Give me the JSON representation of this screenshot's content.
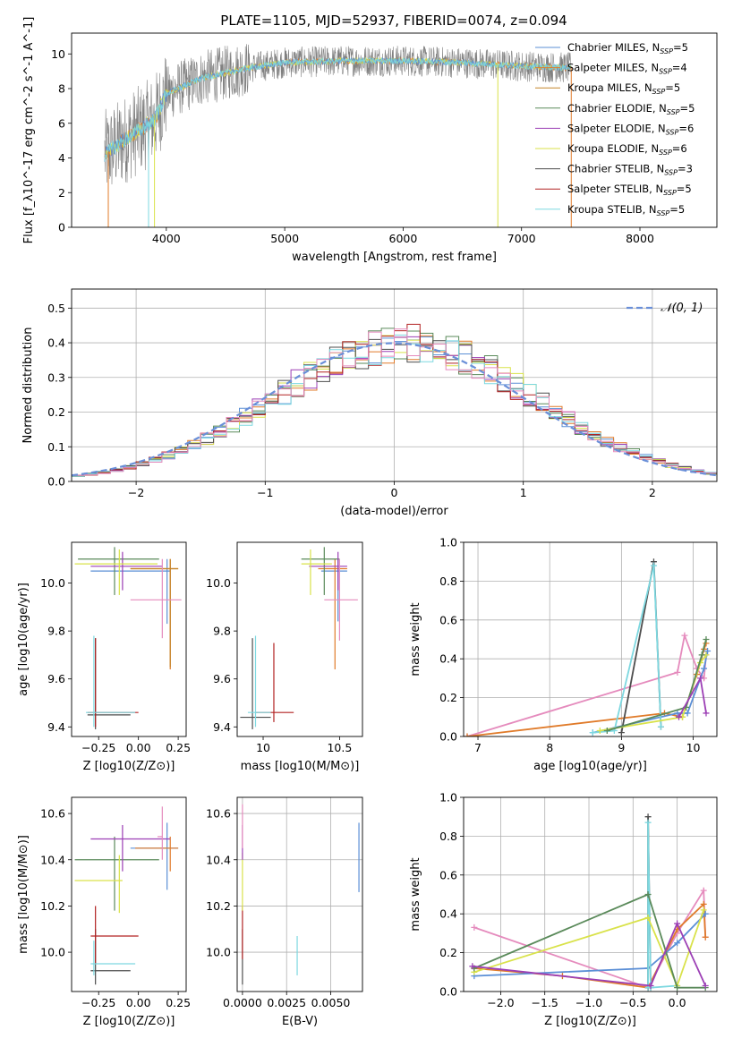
{
  "page_title": "PLATE=1105, MJD=52937, FIBERID=0074, z=0.094",
  "colors": {
    "miles_chabrier": "#5b8fd6",
    "miles_salpeter": "#e07b2a",
    "miles_kroupa": "#c4852a",
    "elodie_chabrier": "#5a8a5a",
    "elodie_salpeter": "#9c3fb5",
    "elodie_kroupa": "#d9e24a",
    "stelib_chabrier": "#4d4d4d",
    "stelib_salpeter": "#b22222",
    "stelib_kroupa": "#7dd8e0",
    "pink": "#e58bbd",
    "data": "#808080",
    "normal_curve": "#6a8fd8",
    "grid": "#b0b0b0"
  },
  "chart_data": [
    {
      "id": "spectrum",
      "type": "line",
      "title": "PLATE=1105, MJD=52937, FIBERID=0074, z=0.094",
      "xlabel": "wavelength [Angstrom, rest frame]",
      "ylabel": "Flux [f_λ10^-17 erg cm^-2 s^-1 A^-1]",
      "xlim": [
        3200,
        8650
      ],
      "ylim": [
        0,
        11.2
      ],
      "xticks": [
        "4000",
        "5000",
        "6000",
        "7000",
        "8000"
      ],
      "yticks": [
        "0",
        "2",
        "4",
        "6",
        "8",
        "10"
      ],
      "legend": [
        {
          "label": "Chabrier MILES, N",
          "sub": "SSP",
          "suffix": "=5"
        },
        {
          "label": "Salpeter MILES, N",
          "sub": "SSP",
          "suffix": "=4"
        },
        {
          "label": "Kroupa MILES, N",
          "sub": "SSP",
          "suffix": "=5"
        },
        {
          "label": "Chabrier ELODIE, N",
          "sub": "SSP",
          "suffix": "=5"
        },
        {
          "label": "Salpeter ELODIE, N",
          "sub": "SSP",
          "suffix": "=6"
        },
        {
          "label": "Kroupa ELODIE, N",
          "sub": "SSP",
          "suffix": "=6"
        },
        {
          "label": "Chabrier STELIB, N",
          "sub": "SSP",
          "suffix": "=3"
        },
        {
          "label": "Salpeter STELIB, N",
          "sub": "SSP",
          "suffix": "=5"
        },
        {
          "label": "Kroupa STELIB, N",
          "sub": "SSP",
          "suffix": "=5"
        }
      ],
      "legend_position": "upper-right",
      "continuum": {
        "x": [
          3480,
          3700,
          3900,
          4000,
          4300,
          4700,
          5000,
          5500,
          6000,
          6500,
          7000,
          7400
        ],
        "y": [
          4.2,
          5.3,
          6.2,
          7.7,
          8.6,
          9.2,
          9.5,
          9.6,
          9.6,
          9.5,
          9.3,
          9.2
        ]
      }
    },
    {
      "id": "residuals",
      "type": "histogram",
      "xlabel": "(data-model)/error",
      "ylabel": "Normed distribution",
      "xlim": [
        -2.5,
        2.5
      ],
      "ylim": [
        0,
        0.555
      ],
      "xticks": [
        "−2",
        "−1",
        "0",
        "1",
        "2"
      ],
      "yticks": [
        "0.0",
        "0.1",
        "0.2",
        "0.3",
        "0.4",
        "0.5"
      ],
      "legend": "𝒩(0, 1)",
      "grid": true,
      "bin_width": 0.1
    },
    {
      "id": "age_vs_Z",
      "type": "errorbar",
      "xlabel": "Z [log10(Z/Z⊙)]",
      "ylabel": "age  [log10(age/yr)]",
      "xlim": [
        -0.42,
        0.3
      ],
      "ylim": [
        9.36,
        10.17
      ],
      "xticks": [
        "−0.25",
        "0.00",
        "0.25"
      ],
      "yticks": [
        "9.4",
        "9.6",
        "9.8",
        "10.0"
      ],
      "points": [
        {
          "c": "miles_chabrier",
          "x": 0.18,
          "y": 10.05,
          "x0": -0.3,
          "x1": 0.2,
          "y0": 9.83,
          "y1": 10.1
        },
        {
          "c": "miles_salpeter",
          "x": 0.2,
          "y": 10.06,
          "x0": -0.05,
          "x1": 0.25,
          "y0": 9.64,
          "y1": 10.1
        },
        {
          "c": "miles_kroupa",
          "x": 0.2,
          "y": 10.06,
          "x0": -0.05,
          "x1": 0.25,
          "y0": 9.65,
          "y1": 10.1
        },
        {
          "c": "elodie_chabrier",
          "x": -0.15,
          "y": 10.1,
          "x0": -0.38,
          "x1": 0.13,
          "y0": 9.95,
          "y1": 10.15
        },
        {
          "c": "elodie_salpeter",
          "x": -0.1,
          "y": 10.07,
          "x0": -0.3,
          "x1": 0.15,
          "y0": 9.97,
          "y1": 10.13
        },
        {
          "c": "elodie_kroupa",
          "x": -0.12,
          "y": 10.08,
          "x0": -0.4,
          "x1": 0.12,
          "y0": 9.95,
          "y1": 10.14
        },
        {
          "c": "stelib_chabrier",
          "x": -0.27,
          "y": 9.45,
          "x0": -0.32,
          "x1": -0.05,
          "y0": 9.39,
          "y1": 9.77
        },
        {
          "c": "stelib_salpeter",
          "x": -0.27,
          "y": 9.46,
          "x0": -0.32,
          "x1": 0.0,
          "y0": 9.4,
          "y1": 9.77
        },
        {
          "c": "stelib_kroupa",
          "x": -0.28,
          "y": 9.46,
          "x0": -0.33,
          "x1": -0.02,
          "y0": 9.4,
          "y1": 9.78
        },
        {
          "c": "pink",
          "x": 0.15,
          "y": 9.93,
          "x0": -0.05,
          "x1": 0.27,
          "y0": 9.77,
          "y1": 10.1
        }
      ]
    },
    {
      "id": "age_vs_mass",
      "type": "errorbar",
      "xlabel": "mass [log10(M/M⊙)]",
      "ylabel": "",
      "xlim": [
        9.83,
        10.65
      ],
      "ylim": [
        9.36,
        10.17
      ],
      "xticks": [
        "10",
        "10.5"
      ],
      "yticks": [
        "9.4",
        "9.6",
        "9.8",
        "10.0"
      ],
      "points": [
        {
          "c": "miles_chabrier",
          "x": 10.49,
          "y": 10.05,
          "x0": 10.38,
          "x1": 10.55,
          "y0": 9.84,
          "y1": 10.1
        },
        {
          "c": "miles_salpeter",
          "x": 10.47,
          "y": 10.06,
          "x0": 10.36,
          "x1": 10.55,
          "y0": 9.64,
          "y1": 10.1
        },
        {
          "c": "elodie_chabrier",
          "x": 10.4,
          "y": 10.1,
          "x0": 10.25,
          "x1": 10.5,
          "y0": 9.95,
          "y1": 10.15
        },
        {
          "c": "elodie_salpeter",
          "x": 10.49,
          "y": 10.07,
          "x0": 10.3,
          "x1": 10.55,
          "y0": 9.97,
          "y1": 10.13
        },
        {
          "c": "elodie_kroupa",
          "x": 10.31,
          "y": 10.08,
          "x0": 10.25,
          "x1": 10.45,
          "y0": 9.95,
          "y1": 10.14
        },
        {
          "c": "stelib_chabrier",
          "x": 9.93,
          "y": 9.44,
          "x0": 9.85,
          "x1": 10.05,
          "y0": 9.39,
          "y1": 9.77
        },
        {
          "c": "stelib_salpeter",
          "x": 10.07,
          "y": 9.46,
          "x0": 9.95,
          "x1": 10.2,
          "y0": 9.42,
          "y1": 9.75
        },
        {
          "c": "stelib_kroupa",
          "x": 9.95,
          "y": 9.46,
          "x0": 9.9,
          "x1": 10.05,
          "y0": 9.4,
          "y1": 9.78
        },
        {
          "c": "pink",
          "x": 10.5,
          "y": 9.93,
          "x0": 10.4,
          "x1": 10.62,
          "y0": 9.76,
          "y1": 10.1
        }
      ]
    },
    {
      "id": "weight_vs_age",
      "type": "line",
      "xlabel": "age  [log10(age/yr)]",
      "ylabel": "mass weight",
      "xlim": [
        6.8,
        10.33
      ],
      "ylim": [
        0,
        1.0
      ],
      "xticks": [
        "7",
        "8",
        "9",
        "10"
      ],
      "yticks": [
        "0.0",
        "0.2",
        "0.4",
        "0.6",
        "0.8",
        "1.0"
      ],
      "grid": true,
      "series": [
        {
          "c": "pink",
          "x": [
            6.85,
            9.78,
            9.88,
            10.05,
            10.15,
            10.18
          ],
          "y": [
            0.0,
            0.33,
            0.52,
            0.35,
            0.3,
            0.42
          ]
        },
        {
          "c": "miles_salpeter",
          "x": [
            6.85,
            9.6,
            9.85,
            10.05,
            10.15,
            10.18
          ],
          "y": [
            0.0,
            0.12,
            0.1,
            0.32,
            0.45,
            0.48
          ]
        },
        {
          "c": "miles_chabrier",
          "x": [
            8.6,
            9.78,
            9.92,
            10.15,
            10.2
          ],
          "y": [
            0.02,
            0.12,
            0.12,
            0.35,
            0.44
          ]
        },
        {
          "c": "stelib_chabrier",
          "x": [
            9.0,
            9.45,
            9.55
          ],
          "y": [
            0.02,
            0.9,
            0.05
          ]
        },
        {
          "c": "stelib_kroupa",
          "x": [
            8.6,
            8.9,
            9.45,
            9.55
          ],
          "y": [
            0.02,
            0.03,
            0.88,
            0.05
          ]
        },
        {
          "c": "elodie_kroupa",
          "x": [
            8.7,
            9.85,
            10.1,
            10.18
          ],
          "y": [
            0.03,
            0.1,
            0.38,
            0.42
          ]
        },
        {
          "c": "elodie_chabrier",
          "x": [
            8.8,
            9.9,
            10.12,
            10.18
          ],
          "y": [
            0.03,
            0.15,
            0.42,
            0.5
          ]
        },
        {
          "c": "elodie_salpeter",
          "x": [
            9.8,
            10.1,
            10.18
          ],
          "y": [
            0.1,
            0.3,
            0.12
          ]
        }
      ]
    },
    {
      "id": "mass_vs_Z",
      "type": "errorbar",
      "xlabel": "Z [log10(Z/Z⊙)]",
      "ylabel": "mass [log10(M/M⊙)]",
      "xlim": [
        -0.42,
        0.3
      ],
      "ylim": [
        9.83,
        10.67
      ],
      "xticks": [
        "−0.25",
        "0.00",
        "0.25"
      ],
      "yticks": [
        "10.0",
        "10.2",
        "10.4",
        "10.6"
      ],
      "points": [
        {
          "c": "miles_chabrier",
          "x": 0.18,
          "y": 10.45,
          "x0": -0.05,
          "x1": 0.25,
          "y0": 10.27,
          "y1": 10.56
        },
        {
          "c": "miles_salpeter",
          "x": 0.2,
          "y": 10.45,
          "x0": -0.02,
          "x1": 0.25,
          "y0": 10.35,
          "y1": 10.5
        },
        {
          "c": "elodie_chabrier",
          "x": -0.15,
          "y": 10.4,
          "x0": -0.4,
          "x1": 0.13,
          "y0": 10.18,
          "y1": 10.5
        },
        {
          "c": "elodie_salpeter",
          "x": -0.1,
          "y": 10.49,
          "x0": -0.3,
          "x1": 0.2,
          "y0": 10.35,
          "y1": 10.55
        },
        {
          "c": "elodie_kroupa",
          "x": -0.12,
          "y": 10.31,
          "x0": -0.4,
          "x1": -0.1,
          "y0": 10.17,
          "y1": 10.42
        },
        {
          "c": "stelib_chabrier",
          "x": -0.27,
          "y": 9.92,
          "x0": -0.3,
          "x1": -0.05,
          "y0": 9.86,
          "y1": 10.1
        },
        {
          "c": "stelib_salpeter",
          "x": -0.27,
          "y": 10.07,
          "x0": -0.3,
          "x1": 0.0,
          "y0": 9.95,
          "y1": 10.2
        },
        {
          "c": "stelib_kroupa",
          "x": -0.28,
          "y": 9.95,
          "x0": -0.3,
          "x1": -0.02,
          "y0": 9.9,
          "y1": 10.05
        },
        {
          "c": "pink",
          "x": 0.15,
          "y": 10.5,
          "x0": 0.12,
          "x1": 0.15,
          "y0": 10.4,
          "y1": 10.63
        }
      ]
    },
    {
      "id": "mass_vs_ebv",
      "type": "errorbar",
      "xlabel": "E(B-V)",
      "ylabel": "",
      "xlim": [
        -0.0003,
        0.0068
      ],
      "ylim": [
        9.83,
        10.67
      ],
      "xticks": [
        "0.0000",
        "0.0025",
        "0.0050"
      ],
      "yticks": [
        "10.0",
        "10.2",
        "10.4",
        "10.6"
      ],
      "grid": true,
      "points": [
        {
          "c": "miles_chabrier",
          "x": 0.0066,
          "y": 10.41,
          "y0": 10.26,
          "y1": 10.56
        },
        {
          "c": "stelib_kroupa",
          "x": 0.0031,
          "y": 9.98,
          "y0": 9.9,
          "y1": 10.07
        },
        {
          "c": "stelib_chabrier",
          "x": 0.0,
          "y": 9.92,
          "y0": 9.86,
          "y1": 10.1
        },
        {
          "c": "stelib_salpeter",
          "x": 0.0,
          "y": 10.07,
          "y0": 9.97,
          "y1": 10.2
        },
        {
          "c": "elodie_kroupa",
          "x": 0.0,
          "y": 10.31,
          "y0": 10.18,
          "y1": 10.43
        },
        {
          "c": "elodie_salpeter",
          "x": 0.0,
          "y": 10.49,
          "y0": 10.4,
          "y1": 10.55
        },
        {
          "c": "pink",
          "x": 0.0,
          "y": 10.55,
          "y0": 10.45,
          "y1": 10.64
        }
      ]
    },
    {
      "id": "weight_vs_Z",
      "type": "line",
      "xlabel": "Z [log10(Z/Z⊙)]",
      "ylabel": "mass weight",
      "xlim": [
        -2.42,
        0.45
      ],
      "ylim": [
        0,
        1.0
      ],
      "xticks": [
        "−2.0",
        "−1.5",
        "−1.0",
        "−0.5",
        "0.0"
      ],
      "yticks": [
        "0.0",
        "0.2",
        "0.4",
        "0.6",
        "0.8",
        "1.0"
      ],
      "grid": true,
      "series": [
        {
          "c": "pink",
          "x": [
            -2.3,
            -0.33,
            0.0,
            0.3,
            0.32
          ],
          "y": [
            0.33,
            0.02,
            0.3,
            0.52,
            0.28
          ]
        },
        {
          "c": "miles_salpeter",
          "x": [
            -2.3,
            -1.3,
            -0.33,
            0.0,
            0.3,
            0.32
          ],
          "y": [
            0.12,
            0.08,
            0.02,
            0.32,
            0.45,
            0.28
          ]
        },
        {
          "c": "miles_chabrier",
          "x": [
            -2.3,
            -0.33,
            0.0,
            0.32
          ],
          "y": [
            0.08,
            0.12,
            0.25,
            0.4
          ]
        },
        {
          "c": "stelib_chabrier",
          "x": [
            -0.33,
            -0.33,
            -0.3
          ],
          "y": [
            0.02,
            0.9,
            0.02
          ]
        },
        {
          "c": "stelib_kroupa",
          "x": [
            -0.33,
            -0.33,
            -0.3,
            0.0
          ],
          "y": [
            0.02,
            0.87,
            0.02,
            0.03
          ]
        },
        {
          "c": "elodie_kroupa",
          "x": [
            -2.3,
            -0.33,
            0.0,
            0.3
          ],
          "y": [
            0.1,
            0.38,
            0.03,
            0.42
          ]
        },
        {
          "c": "elodie_chabrier",
          "x": [
            -2.3,
            -0.33,
            0.0,
            0.32
          ],
          "y": [
            0.12,
            0.5,
            0.02,
            0.02
          ]
        },
        {
          "c": "elodie_salpeter",
          "x": [
            -2.32,
            -0.3,
            0.0,
            0.32
          ],
          "y": [
            0.13,
            0.03,
            0.35,
            0.03
          ]
        }
      ]
    }
  ]
}
